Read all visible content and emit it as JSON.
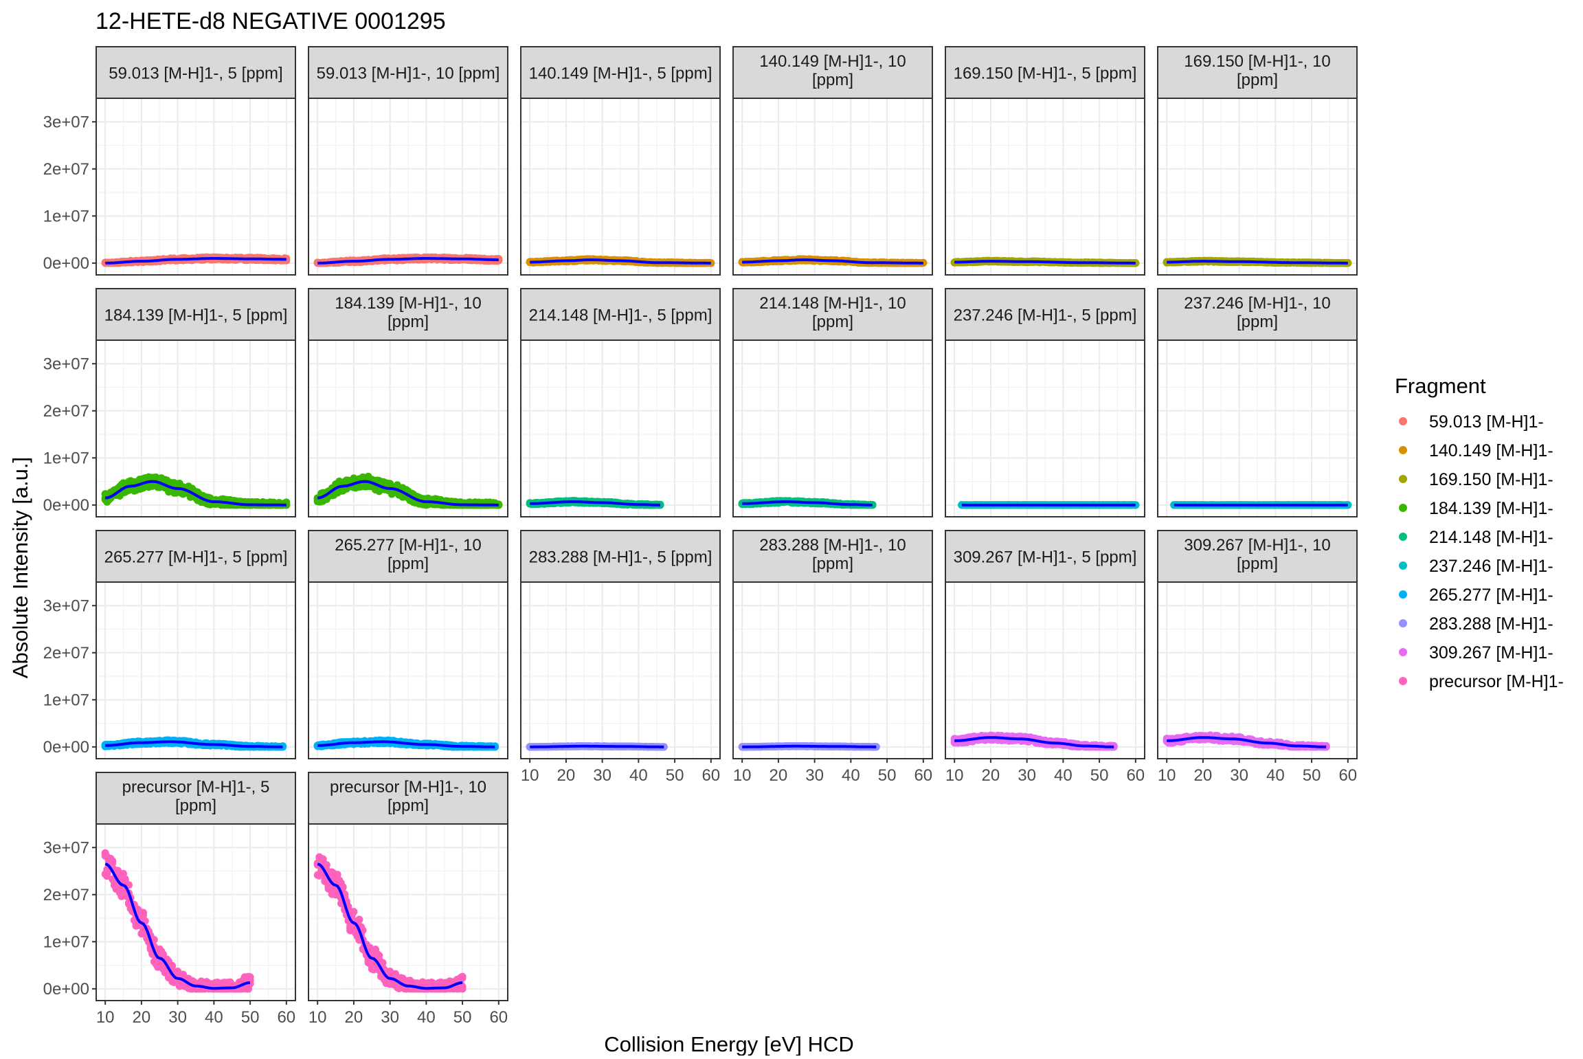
{
  "chart_data": {
    "type": "scatter",
    "title": "12-HETE-d8 NEGATIVE 0001295",
    "xlabel": "Collision Energy [eV] HCD",
    "ylabel": "Absolute Intensity [a.u.]",
    "xlim": [
      7.5,
      62.5
    ],
    "ylim": [
      -2500000,
      35000000
    ],
    "x_ticks": [
      10,
      20,
      30,
      40,
      50,
      60
    ],
    "x_tick_labels": [
      "10",
      "20",
      "30",
      "40",
      "50",
      "60"
    ],
    "y_ticks": [
      0,
      10000000,
      20000000,
      30000000
    ],
    "y_tick_labels": [
      "0e+00",
      "1e+07",
      "2e+07",
      "3e+07"
    ],
    "grid": true,
    "fit_color": "#0000ff",
    "legend": {
      "title": "Fragment",
      "position": "right",
      "entries": [
        {
          "label": "59.013 [M-H]1-",
          "color": "#F8766D"
        },
        {
          "label": "140.149 [M-H]1-",
          "color": "#D89000"
        },
        {
          "label": "169.150 [M-H]1-",
          "color": "#A3A500"
        },
        {
          "label": "184.139 [M-H]1-",
          "color": "#39B600"
        },
        {
          "label": "214.148 [M-H]1-",
          "color": "#00BF7D"
        },
        {
          "label": "237.246 [M-H]1-",
          "color": "#00BFC4"
        },
        {
          "label": "265.277 [M-H]1-",
          "color": "#00B0F6"
        },
        {
          "label": "283.288 [M-H]1-",
          "color": "#9590FF"
        },
        {
          "label": "309.267 [M-H]1-",
          "color": "#E76BF3"
        },
        {
          "label": "precursor [M-H]1-",
          "color": "#FF62BC"
        }
      ]
    },
    "panels": [
      {
        "strip": [
          "59.013 [M-H]1-, 5 [ppm]"
        ],
        "fragment": 0,
        "x_range": [
          10,
          60
        ],
        "curve": [
          [
            10,
            0
          ],
          [
            20,
            400000
          ],
          [
            30,
            800000
          ],
          [
            40,
            1000000
          ],
          [
            50,
            900000
          ],
          [
            60,
            800000
          ]
        ],
        "spread": 300000
      },
      {
        "strip": [
          "59.013 [M-H]1-, 10 [ppm]"
        ],
        "fragment": 0,
        "x_range": [
          10,
          60
        ],
        "curve": [
          [
            10,
            0
          ],
          [
            20,
            400000
          ],
          [
            30,
            800000
          ],
          [
            40,
            1000000
          ],
          [
            50,
            900000
          ],
          [
            60,
            700000
          ]
        ],
        "spread": 300000
      },
      {
        "strip": [
          "140.149 [M-H]1-, 5 [ppm]"
        ],
        "fragment": 1,
        "x_range": [
          10,
          60
        ],
        "curve": [
          [
            10,
            200000
          ],
          [
            20,
            500000
          ],
          [
            27,
            700000
          ],
          [
            35,
            500000
          ],
          [
            45,
            100000
          ],
          [
            60,
            0
          ]
        ],
        "spread": 200000
      },
      {
        "strip": [
          "140.149 [M-H]1-, 10",
          "[ppm]"
        ],
        "fragment": 1,
        "x_range": [
          10,
          60
        ],
        "curve": [
          [
            10,
            200000
          ],
          [
            20,
            500000
          ],
          [
            27,
            700000
          ],
          [
            35,
            500000
          ],
          [
            45,
            100000
          ],
          [
            60,
            0
          ]
        ],
        "spread": 200000
      },
      {
        "strip": [
          "169.150 [M-H]1-, 5 [ppm]"
        ],
        "fragment": 2,
        "x_range": [
          10,
          60
        ],
        "curve": [
          [
            10,
            200000
          ],
          [
            20,
            400000
          ],
          [
            30,
            300000
          ],
          [
            45,
            100000
          ],
          [
            60,
            0
          ]
        ],
        "spread": 150000
      },
      {
        "strip": [
          "169.150 [M-H]1-, 10",
          "[ppm]"
        ],
        "fragment": 2,
        "x_range": [
          10,
          60
        ],
        "curve": [
          [
            10,
            200000
          ],
          [
            20,
            400000
          ],
          [
            30,
            300000
          ],
          [
            45,
            100000
          ],
          [
            60,
            0
          ]
        ],
        "spread": 150000
      },
      {
        "strip": [
          "184.139 [M-H]1-, 5 [ppm]"
        ],
        "fragment": 3,
        "x_range": [
          10,
          60
        ],
        "curve": [
          [
            10,
            1500000
          ],
          [
            17,
            4000000
          ],
          [
            23,
            5000000
          ],
          [
            30,
            3500000
          ],
          [
            40,
            700000
          ],
          [
            50,
            50000
          ],
          [
            60,
            0
          ]
        ],
        "spread": 1200000
      },
      {
        "strip": [
          "184.139 [M-H]1-, 10",
          "[ppm]"
        ],
        "fragment": 3,
        "x_range": [
          10,
          60
        ],
        "curve": [
          [
            10,
            1500000
          ],
          [
            17,
            4000000
          ],
          [
            23,
            5000000
          ],
          [
            30,
            3500000
          ],
          [
            40,
            700000
          ],
          [
            50,
            50000
          ],
          [
            60,
            0
          ]
        ],
        "spread": 1200000
      },
      {
        "strip": [
          "214.148 [M-H]1-, 5 [ppm]"
        ],
        "fragment": 4,
        "x_range": [
          10,
          46
        ],
        "curve": [
          [
            10,
            300000
          ],
          [
            22,
            700000
          ],
          [
            30,
            500000
          ],
          [
            40,
            100000
          ],
          [
            46,
            0
          ]
        ],
        "spread": 250000
      },
      {
        "strip": [
          "214.148 [M-H]1-, 10",
          "[ppm]"
        ],
        "fragment": 4,
        "x_range": [
          10,
          46
        ],
        "curve": [
          [
            10,
            300000
          ],
          [
            22,
            700000
          ],
          [
            30,
            500000
          ],
          [
            40,
            100000
          ],
          [
            46,
            0
          ]
        ],
        "spread": 250000
      },
      {
        "strip": [
          "237.246 [M-H]1-, 5 [ppm]"
        ],
        "fragment": 5,
        "x_range": [
          12,
          60
        ],
        "curve": [
          [
            12,
            0
          ],
          [
            60,
            0
          ]
        ],
        "spread": 60000
      },
      {
        "strip": [
          "237.246 [M-H]1-, 10",
          "[ppm]"
        ],
        "fragment": 5,
        "x_range": [
          12,
          60
        ],
        "curve": [
          [
            12,
            0
          ],
          [
            60,
            0
          ]
        ],
        "spread": 60000
      },
      {
        "strip": [
          "265.277 [M-H]1-, 5 [ppm]"
        ],
        "fragment": 6,
        "x_range": [
          10,
          59
        ],
        "curve": [
          [
            10,
            300000
          ],
          [
            20,
            900000
          ],
          [
            28,
            1100000
          ],
          [
            40,
            500000
          ],
          [
            50,
            100000
          ],
          [
            59,
            0
          ]
        ],
        "spread": 350000
      },
      {
        "strip": [
          "265.277 [M-H]1-, 10",
          "[ppm]"
        ],
        "fragment": 6,
        "x_range": [
          10,
          59
        ],
        "curve": [
          [
            10,
            300000
          ],
          [
            20,
            900000
          ],
          [
            28,
            1100000
          ],
          [
            40,
            500000
          ],
          [
            50,
            100000
          ],
          [
            59,
            0
          ]
        ],
        "spread": 350000
      },
      {
        "strip": [
          "283.288 [M-H]1-, 5 [ppm]"
        ],
        "fragment": 7,
        "x_range": [
          10,
          47
        ],
        "curve": [
          [
            10,
            0
          ],
          [
            25,
            150000
          ],
          [
            35,
            100000
          ],
          [
            47,
            0
          ]
        ],
        "spread": 80000
      },
      {
        "strip": [
          "283.288 [M-H]1-, 10",
          "[ppm]"
        ],
        "fragment": 7,
        "x_range": [
          10,
          47
        ],
        "curve": [
          [
            10,
            0
          ],
          [
            25,
            150000
          ],
          [
            35,
            100000
          ],
          [
            47,
            0
          ]
        ],
        "spread": 80000
      },
      {
        "strip": [
          "309.267 [M-H]1-, 5 [ppm]"
        ],
        "fragment": 8,
        "x_range": [
          10,
          54
        ],
        "curve": [
          [
            10,
            1300000
          ],
          [
            20,
            2000000
          ],
          [
            28,
            1700000
          ],
          [
            38,
            800000
          ],
          [
            46,
            200000
          ],
          [
            54,
            0
          ]
        ],
        "spread": 550000
      },
      {
        "strip": [
          "309.267 [M-H]1-, 10",
          "[ppm]"
        ],
        "fragment": 8,
        "x_range": [
          10,
          54
        ],
        "curve": [
          [
            10,
            1300000
          ],
          [
            20,
            2000000
          ],
          [
            28,
            1700000
          ],
          [
            38,
            800000
          ],
          [
            46,
            200000
          ],
          [
            54,
            0
          ]
        ],
        "spread": 550000
      },
      {
        "strip": [
          "precursor [M-H]1-, 5",
          "[ppm]"
        ],
        "fragment": 9,
        "x_range": [
          10,
          50
        ],
        "curve": [
          [
            10,
            26500000
          ],
          [
            15,
            22000000
          ],
          [
            20,
            14000000
          ],
          [
            25,
            6500000
          ],
          [
            30,
            2200000
          ],
          [
            35,
            600000
          ],
          [
            40,
            100000
          ],
          [
            45,
            200000
          ],
          [
            50,
            1300000
          ]
        ],
        "spread": 2500000
      },
      {
        "strip": [
          "precursor [M-H]1-, 10",
          "[ppm]"
        ],
        "fragment": 9,
        "x_range": [
          10,
          50
        ],
        "curve": [
          [
            10,
            26500000
          ],
          [
            15,
            22000000
          ],
          [
            20,
            14000000
          ],
          [
            25,
            6500000
          ],
          [
            30,
            2200000
          ],
          [
            35,
            600000
          ],
          [
            40,
            100000
          ],
          [
            45,
            200000
          ],
          [
            50,
            1300000
          ]
        ],
        "spread": 2500000
      }
    ]
  }
}
